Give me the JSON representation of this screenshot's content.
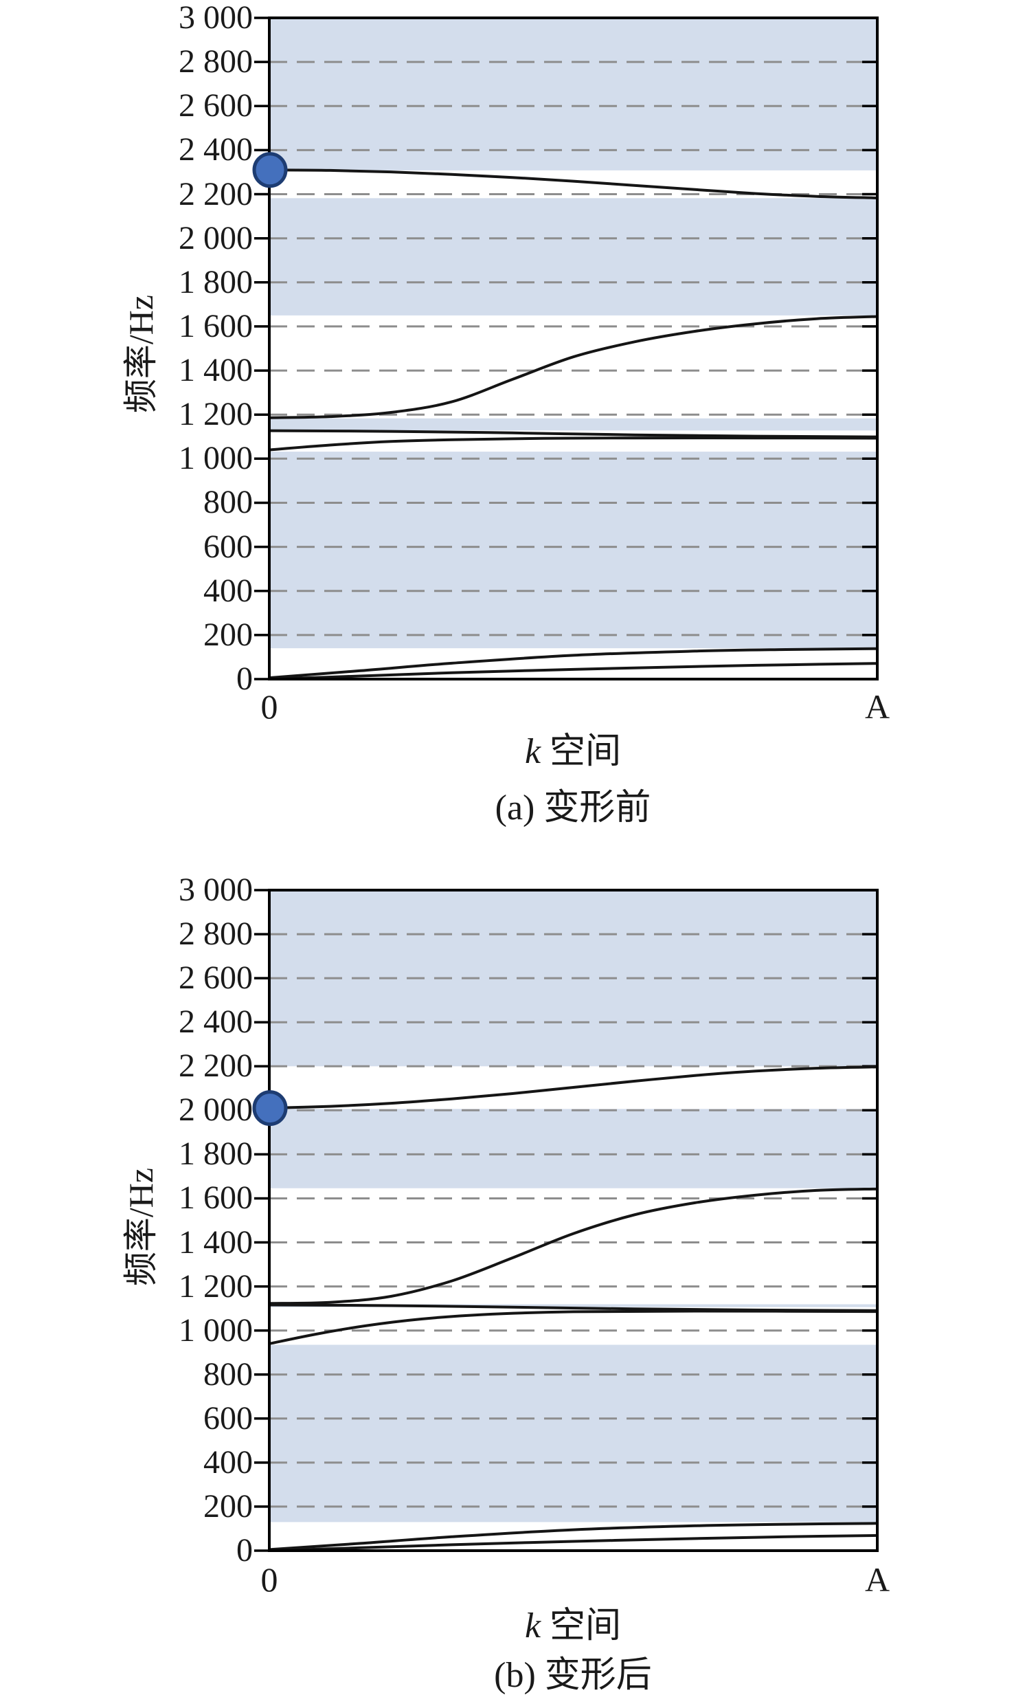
{
  "page": {
    "background": "#ffffff"
  },
  "colors": {
    "band_gap_fill": "#d3ddec",
    "curve": "#151515",
    "gridline": "#8d8d8d",
    "frame": "#000000",
    "tick": "#000000",
    "marker_fill": "#4470bd",
    "marker_stroke": "#1d3c72",
    "text": "#1a1a1a"
  },
  "chart_data": [
    {
      "type": "line",
      "caption": "(a) 变形前",
      "xlabel": "k 空间",
      "xlabel_italic": "k",
      "xlabel_text": " 空间",
      "ylabel": "频率/Hz",
      "x_ticks": [
        "0",
        "A"
      ],
      "x_unit": "fraction of k-space path from 0 to A",
      "ylim": [
        0,
        3000
      ],
      "grid": "horizontal dashed gridlines every 200 Hz",
      "legend": "none",
      "y_ticks": [
        {
          "value": 3000,
          "label": "3 000"
        },
        {
          "value": 2800,
          "label": "2 800"
        },
        {
          "value": 2600,
          "label": "2 600"
        },
        {
          "value": 2400,
          "label": "2 400"
        },
        {
          "value": 2200,
          "label": "2 200"
        },
        {
          "value": 2000,
          "label": "2 000"
        },
        {
          "value": 1800,
          "label": "1 800"
        },
        {
          "value": 1600,
          "label": "1 600"
        },
        {
          "value": 1400,
          "label": "1 400"
        },
        {
          "value": 1200,
          "label": "1 200"
        },
        {
          "value": 1000,
          "label": "1 000"
        },
        {
          "value": 800,
          "label": "800"
        },
        {
          "value": 600,
          "label": "600"
        },
        {
          "value": 400,
          "label": "400"
        },
        {
          "value": 200,
          "label": "200"
        },
        {
          "value": 0,
          "label": "0"
        }
      ],
      "band_gaps_hz": [
        [
          140,
          1032
        ],
        [
          1128,
          1183
        ],
        [
          1650,
          2182
        ],
        [
          2308,
          3000
        ]
      ],
      "marker": {
        "x": 0,
        "frequency_hz": 2310
      },
      "series": [
        {
          "name": "band-1",
          "points": [
            [
              0,
              0
            ],
            [
              0.15,
              14
            ],
            [
              0.3,
              29
            ],
            [
              0.5,
              44
            ],
            [
              0.7,
              57
            ],
            [
              0.85,
              65
            ],
            [
              1,
              71
            ]
          ]
        },
        {
          "name": "band-2",
          "points": [
            [
              0,
              6
            ],
            [
              0.15,
              38
            ],
            [
              0.3,
              72
            ],
            [
              0.5,
              108
            ],
            [
              0.7,
              127
            ],
            [
              0.85,
              134
            ],
            [
              1,
              138
            ]
          ]
        },
        {
          "name": "band-3",
          "points": [
            [
              0,
              1040
            ],
            [
              0.1,
              1062
            ],
            [
              0.2,
              1078
            ],
            [
              0.3,
              1086
            ],
            [
              0.45,
              1092
            ],
            [
              0.6,
              1094
            ],
            [
              0.8,
              1094
            ],
            [
              1,
              1093
            ]
          ]
        },
        {
          "name": "band-4",
          "points": [
            [
              0,
              1127
            ],
            [
              0.2,
              1124
            ],
            [
              0.4,
              1117
            ],
            [
              0.6,
              1108
            ],
            [
              0.8,
              1102
            ],
            [
              1,
              1099
            ]
          ]
        },
        {
          "name": "band-5",
          "points": [
            [
              0,
              1186
            ],
            [
              0.1,
              1191
            ],
            [
              0.2,
              1210
            ],
            [
              0.3,
              1258
            ],
            [
              0.4,
              1360
            ],
            [
              0.5,
              1462
            ],
            [
              0.6,
              1530
            ],
            [
              0.7,
              1578
            ],
            [
              0.8,
              1612
            ],
            [
              0.9,
              1635
            ],
            [
              1,
              1645
            ]
          ]
        },
        {
          "name": "band-6",
          "points": [
            [
              0,
              2310
            ],
            [
              0.1,
              2308
            ],
            [
              0.2,
              2301
            ],
            [
              0.3,
              2290
            ],
            [
              0.4,
              2276
            ],
            [
              0.5,
              2259
            ],
            [
              0.6,
              2240
            ],
            [
              0.7,
              2221
            ],
            [
              0.8,
              2203
            ],
            [
              0.9,
              2190
            ],
            [
              1,
              2183
            ]
          ]
        }
      ]
    },
    {
      "type": "line",
      "caption": "(b) 变形后",
      "xlabel": "k 空间",
      "xlabel_italic": "k",
      "xlabel_text": " 空间",
      "ylabel": "频率/Hz",
      "x_ticks": [
        "0",
        "A"
      ],
      "x_unit": "fraction of k-space path from 0 to A",
      "ylim": [
        0,
        3000
      ],
      "grid": "horizontal dashed gridlines every 200 Hz",
      "legend": "none",
      "y_ticks": [
        {
          "value": 3000,
          "label": "3 000"
        },
        {
          "value": 2800,
          "label": "2 800"
        },
        {
          "value": 2600,
          "label": "2 600"
        },
        {
          "value": 2400,
          "label": "2 400"
        },
        {
          "value": 2200,
          "label": "2 200"
        },
        {
          "value": 2000,
          "label": "2 000"
        },
        {
          "value": 1800,
          "label": "1 800"
        },
        {
          "value": 1600,
          "label": "1 600"
        },
        {
          "value": 1400,
          "label": "1 400"
        },
        {
          "value": 1200,
          "label": "1 200"
        },
        {
          "value": 1000,
          "label": "1 000"
        },
        {
          "value": 800,
          "label": "800"
        },
        {
          "value": 600,
          "label": "600"
        },
        {
          "value": 400,
          "label": "400"
        },
        {
          "value": 200,
          "label": "200"
        },
        {
          "value": 0,
          "label": "0"
        }
      ],
      "band_gaps_hz": [
        [
          130,
          935
        ],
        [
          1106,
          1119
        ],
        [
          1646,
          2006
        ],
        [
          2200,
          3000
        ]
      ],
      "marker": {
        "x": 0,
        "frequency_hz": 2010
      },
      "series": [
        {
          "name": "band-1",
          "points": [
            [
              0,
              0
            ],
            [
              0.15,
              13
            ],
            [
              0.3,
              27
            ],
            [
              0.5,
              42
            ],
            [
              0.7,
              55
            ],
            [
              0.85,
              63
            ],
            [
              1,
              69
            ]
          ]
        },
        {
          "name": "band-2",
          "points": [
            [
              0,
              5
            ],
            [
              0.15,
              33
            ],
            [
              0.3,
              63
            ],
            [
              0.5,
              95
            ],
            [
              0.7,
              113
            ],
            [
              0.85,
              120
            ],
            [
              1,
              124
            ]
          ]
        },
        {
          "name": "band-3",
          "points": [
            [
              0,
              940
            ],
            [
              0.08,
              985
            ],
            [
              0.16,
              1022
            ],
            [
              0.25,
              1052
            ],
            [
              0.35,
              1072
            ],
            [
              0.5,
              1085
            ],
            [
              0.7,
              1088
            ],
            [
              1,
              1086
            ]
          ]
        },
        {
          "name": "band-4",
          "points": [
            [
              0,
              1116
            ],
            [
              0.2,
              1113
            ],
            [
              0.4,
              1106
            ],
            [
              0.6,
              1098
            ],
            [
              0.8,
              1093
            ],
            [
              1,
              1090
            ]
          ]
        },
        {
          "name": "band-5",
          "points": [
            [
              0,
              1123
            ],
            [
              0.1,
              1128
            ],
            [
              0.2,
              1155
            ],
            [
              0.3,
              1225
            ],
            [
              0.4,
              1330
            ],
            [
              0.5,
              1440
            ],
            [
              0.6,
              1525
            ],
            [
              0.7,
              1580
            ],
            [
              0.8,
              1615
            ],
            [
              0.9,
              1636
            ],
            [
              1,
              1643
            ]
          ]
        },
        {
          "name": "band-6",
          "points": [
            [
              0,
              2010
            ],
            [
              0.1,
              2018
            ],
            [
              0.2,
              2032
            ],
            [
              0.3,
              2052
            ],
            [
              0.4,
              2076
            ],
            [
              0.5,
              2104
            ],
            [
              0.6,
              2132
            ],
            [
              0.7,
              2158
            ],
            [
              0.8,
              2178
            ],
            [
              0.9,
              2191
            ],
            [
              1,
              2197
            ]
          ]
        }
      ]
    }
  ]
}
